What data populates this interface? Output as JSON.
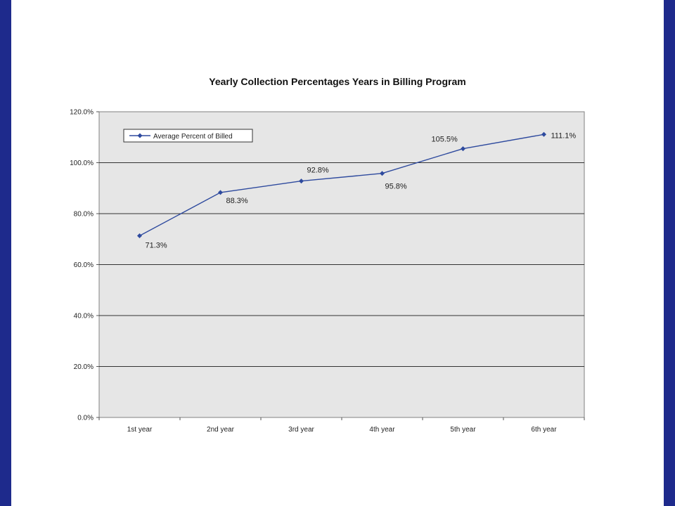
{
  "chart_data": {
    "type": "line",
    "title": "Yearly Collection Percentages Years in Billing Program",
    "categories": [
      "1st year",
      "2nd year",
      "3rd year",
      "4th year",
      "5th year",
      "6th year"
    ],
    "series": [
      {
        "name": "Average Percent of Billed",
        "values": [
          71.3,
          88.3,
          92.8,
          95.8,
          105.5,
          111.1
        ],
        "labels": [
          "71.3%",
          "88.3%",
          "92.8%",
          "95.8%",
          "105.5%",
          "111.1%"
        ],
        "color": "#2e4a9e"
      }
    ],
    "ylim": [
      0,
      120
    ],
    "yticks": [
      0,
      20,
      40,
      60,
      80,
      100,
      120
    ],
    "ytick_labels": [
      "0.0%",
      "20.0%",
      "40.0%",
      "60.0%",
      "80.0%",
      "100.0%",
      "120.0%"
    ],
    "grid": true,
    "legend_position": "top-left",
    "plot_background": "#e6e6e6",
    "frame_colors": {
      "side_bars": "#1e2a8c"
    }
  }
}
